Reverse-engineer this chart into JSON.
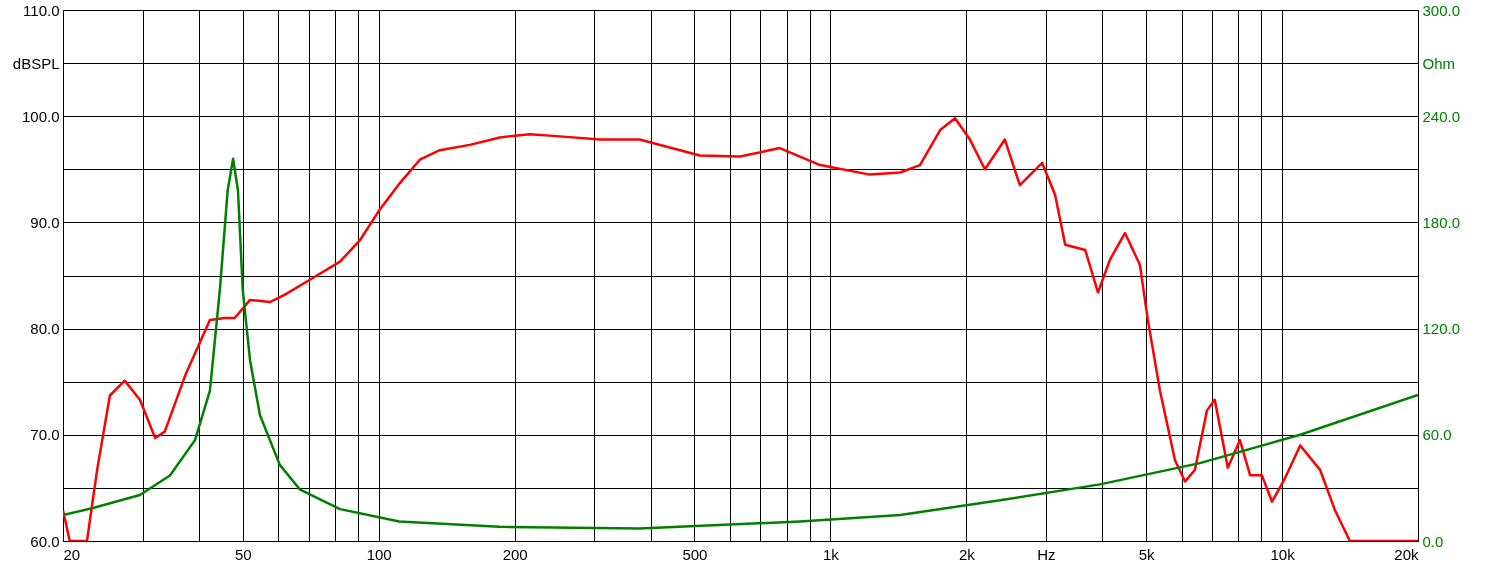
{
  "chart_data": {
    "type": "line",
    "log": "x",
    "grid": true,
    "xlim": [
      20,
      20000
    ],
    "xticks": [
      20,
      {
        "value": 30,
        "label": null
      },
      {
        "value": 40,
        "label": null
      },
      50,
      {
        "value": 60,
        "label": null
      },
      {
        "value": 70,
        "label": null
      },
      {
        "value": 80,
        "label": null
      },
      {
        "value": 90,
        "label": null
      },
      100,
      200,
      {
        "value": 300,
        "label": null
      },
      {
        "value": 400,
        "label": null
      },
      500,
      {
        "value": 600,
        "label": null
      },
      {
        "value": 700,
        "label": null
      },
      {
        "value": 800,
        "label": null
      },
      {
        "value": 900,
        "label": null
      },
      {
        "value": 1000,
        "label": "1k"
      },
      {
        "value": 2000,
        "label": "2k"
      },
      {
        "value": 3000,
        "label": "Hz"
      },
      {
        "value": 4000,
        "label": null
      },
      {
        "value": 5000,
        "label": "5k"
      },
      {
        "value": 6000,
        "label": null
      },
      {
        "value": 7000,
        "label": null
      },
      {
        "value": 8000,
        "label": null
      },
      {
        "value": 9000,
        "label": null
      },
      {
        "value": 10000,
        "label": "10k"
      },
      {
        "value": 20000,
        "label": "20k"
      }
    ],
    "ylim": [
      60,
      110
    ],
    "yticks": [
      {
        "value": 60,
        "label": "60.0"
      },
      {
        "value": 65,
        "label": null
      },
      {
        "value": 70,
        "label": "70.0"
      },
      {
        "value": 75,
        "label": null
      },
      {
        "value": 80,
        "label": "80.0"
      },
      {
        "value": 85,
        "label": null
      },
      {
        "value": 90,
        "label": "90.0"
      },
      {
        "value": 95,
        "label": null
      },
      {
        "value": 100,
        "label": "100.0"
      },
      {
        "value": 105,
        "label": "dBSPL"
      },
      {
        "value": 110,
        "label": "110.0"
      }
    ],
    "y2lim": [
      0,
      300
    ],
    "y2ticks": [
      {
        "value": 0,
        "label": "0.0"
      },
      {
        "value": 60,
        "label": "60.0"
      },
      {
        "value": 120,
        "label": "120.0"
      },
      {
        "value": 180,
        "label": "180.0"
      },
      {
        "value": 240,
        "label": "240.0"
      },
      {
        "value": 270,
        "label": "Ohm"
      },
      {
        "value": 300,
        "label": "300.0"
      }
    ],
    "series": [
      {
        "color": "#ff0000",
        "x": [
          20,
          20.7,
          22.6,
          23.8,
          25.4,
          27.4,
          29.6,
          32.0,
          33.6,
          37.3,
          42.3,
          45.7,
          48.0,
          51.9,
          57.4,
          62.0,
          70.4,
          82.1,
          90.8,
          100.5,
          111.4,
          123.3,
          136.5,
          159.1,
          185.4,
          216,
          252,
          309,
          378,
          514,
          631,
          773,
          949,
          1224,
          1427,
          1579,
          1750,
          1888,
          2037,
          2199,
          2434,
          2628,
          2944,
          3144,
          3311,
          3667,
          3913,
          4160,
          4490,
          4846,
          5046,
          5365,
          5794,
          6100,
          6414,
          6822,
          7096,
          7585,
          8069,
          8497,
          9020,
          9506,
          10150,
          10970,
          12140,
          13100,
          14130,
          20000
        ],
        "values": [
          62.9,
          60,
          60,
          66.7,
          73.7,
          75.1,
          73.3,
          69.7,
          70.3,
          75.6,
          80.8,
          81.0,
          81.0,
          82.7,
          82.5,
          83.2,
          84.6,
          86.3,
          88.3,
          91.2,
          93.7,
          95.9,
          96.8,
          97.3,
          98.0,
          98.3,
          98.1,
          97.8,
          97.8,
          96.3,
          96.2,
          97.0,
          95.4,
          94.5,
          94.7,
          95.4,
          98.7,
          99.8,
          97.8,
          95.0,
          97.8,
          93.5,
          95.6,
          92.6,
          87.9,
          87.4,
          83.4,
          86.5,
          89.0,
          86.0,
          80.8,
          74.2,
          67.6,
          65.6,
          66.7,
          72.3,
          73.3,
          66.9,
          69.5,
          66.2,
          66.2,
          63.7,
          65.9,
          69.0,
          66.7,
          62.9,
          60,
          60
        ]
      },
      {
        "color": "#008000",
        "axis": "y2",
        "x": [
          20,
          23.3,
          29.6,
          34.5,
          39.2,
          42.3,
          44.5,
          46.3,
          47.6,
          48.8,
          50.0,
          51.9,
          54.6,
          60.4,
          67.0,
          82.1,
          111,
          185,
          378,
          857,
          1427,
          2374,
          3953,
          6578,
          10970,
          20000
        ],
        "values": [
          14.7,
          18.6,
          26,
          37,
          57,
          85,
          142,
          198,
          216,
          198,
          142,
          102,
          71,
          43,
          29,
          18,
          11,
          8,
          7,
          11,
          14.7,
          23,
          32,
          44,
          60,
          82.5
        ]
      }
    ]
  }
}
